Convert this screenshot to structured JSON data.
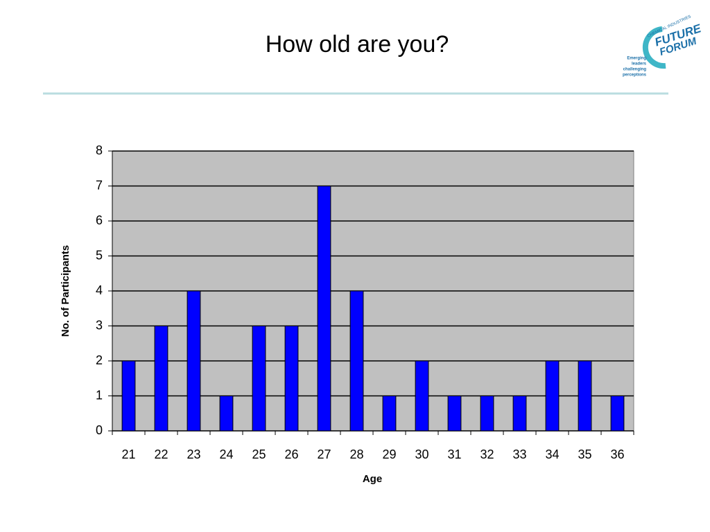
{
  "chart_data": {
    "type": "bar",
    "title": "How old are you?",
    "x_label": "Age",
    "y_label": "No. of Participants",
    "categories": [
      "21",
      "22",
      "23",
      "24",
      "25",
      "26",
      "27",
      "28",
      "29",
      "30",
      "31",
      "32",
      "33",
      "34",
      "35",
      "36"
    ],
    "values": [
      2,
      3,
      4,
      1,
      3,
      3,
      7,
      4,
      1,
      2,
      1,
      1,
      1,
      2,
      2,
      1
    ],
    "color": "#0000ff",
    "ylim": [
      0,
      8
    ],
    "yticks": [
      0,
      1,
      2,
      3,
      4,
      5,
      6,
      7,
      8
    ],
    "grid": true
  },
  "logo": {
    "top": "CHEMICAL INDUSTRIES",
    "name1": "FUTURE",
    "name2": "FORUM",
    "tagline": [
      "Emerging",
      "leaders",
      "challenging",
      "perceptions"
    ]
  }
}
